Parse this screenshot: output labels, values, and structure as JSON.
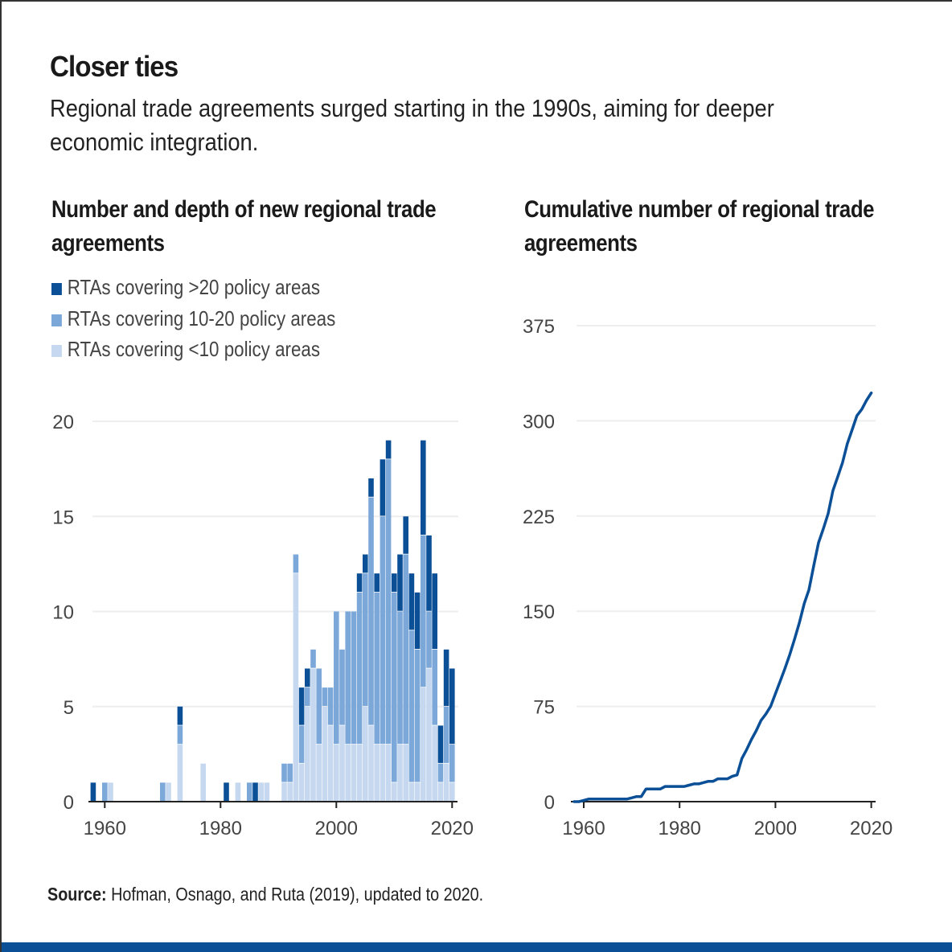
{
  "title": "Closer ties",
  "subtitle": "Regional trade agreements surged starting in the 1990s, aiming for deeper economic integration.",
  "source_label": "Source:",
  "source_text": " Hofman, Osnago, and Ruta (2019), updated to 2020.",
  "colors": {
    "deep": "#0b4f96",
    "medium": "#7ba7d9",
    "shallow": "#c5d8ef",
    "line": "#0b4f96",
    "grid": "#eeeeee"
  },
  "chart_data": [
    {
      "type": "bar",
      "stacked": true,
      "title": "Number and depth of new regional trade agreements",
      "xlabel": "",
      "ylabel": "",
      "ylim": [
        0,
        20
      ],
      "yticks": [
        0,
        5,
        10,
        15,
        20
      ],
      "xticks": [
        1960,
        1980,
        2000,
        2020
      ],
      "grid": true,
      "legend_placement": "top-left",
      "categories": [
        1958,
        1960,
        1961,
        1970,
        1971,
        1973,
        1977,
        1981,
        1983,
        1985,
        1986,
        1987,
        1988,
        1991,
        1992,
        1993,
        1994,
        1995,
        1996,
        1997,
        1998,
        1999,
        2000,
        2001,
        2002,
        2003,
        2004,
        2005,
        2006,
        2007,
        2008,
        2009,
        2010,
        2011,
        2012,
        2013,
        2014,
        2015,
        2016,
        2017,
        2018,
        2019,
        2020
      ],
      "series": [
        {
          "name": "RTAs covering <10 policy areas",
          "color": "#c5d8ef",
          "values": [
            0,
            0,
            1,
            0,
            1,
            3,
            2,
            0,
            1,
            0,
            0,
            1,
            1,
            1,
            1,
            12,
            2,
            5,
            7,
            3,
            5,
            4,
            3,
            4,
            3,
            3,
            3,
            5,
            4,
            3,
            3,
            3,
            1,
            3,
            3,
            1,
            1,
            6,
            7,
            4,
            1,
            2,
            1
          ]
        },
        {
          "name": "RTAs covering 10-20 policy areas",
          "color": "#7ba7d9",
          "values": [
            0,
            1,
            0,
            1,
            0,
            1,
            0,
            0,
            0,
            1,
            0,
            0,
            0,
            1,
            1,
            1,
            2,
            1,
            1,
            4,
            1,
            2,
            7,
            4,
            7,
            7,
            8,
            7,
            12,
            8,
            12,
            15,
            10,
            7,
            10,
            8,
            7,
            8,
            3,
            4,
            1,
            3,
            2
          ]
        },
        {
          "name": "RTAs covering >20 policy areas",
          "color": "#0b4f96",
          "values": [
            1,
            0,
            0,
            0,
            0,
            1,
            0,
            1,
            0,
            0,
            1,
            0,
            0,
            0,
            0,
            0,
            2,
            1,
            0,
            0,
            0,
            0,
            0,
            0,
            0,
            0,
            1,
            1,
            1,
            1,
            3,
            1,
            1,
            3,
            2,
            3,
            3,
            5,
            4,
            4,
            2,
            3,
            4
          ]
        }
      ]
    },
    {
      "type": "line",
      "title": "Cumulative number of regional trade agreements",
      "xlabel": "",
      "ylabel": "",
      "ylim": [
        0,
        375
      ],
      "yticks": [
        0,
        75,
        150,
        225,
        300,
        375
      ],
      "xticks": [
        1960,
        1980,
        2000,
        2020
      ],
      "grid": true,
      "x": [
        1958,
        1959,
        1960,
        1961,
        1969,
        1970,
        1971,
        1972,
        1973,
        1976,
        1977,
        1980,
        1981,
        1982,
        1983,
        1984,
        1985,
        1986,
        1987,
        1988,
        1990,
        1991,
        1992,
        1993,
        1994,
        1995,
        1996,
        1997,
        1998,
        1999,
        2000,
        2001,
        2002,
        2003,
        2004,
        2005,
        2006,
        2007,
        2008,
        2009,
        2010,
        2011,
        2012,
        2013,
        2014,
        2015,
        2016,
        2017,
        2018,
        2019,
        2020
      ],
      "y": [
        0,
        0,
        1,
        2,
        2,
        3,
        4,
        4,
        10,
        10,
        12,
        12,
        12,
        13,
        14,
        14,
        15,
        16,
        16,
        18,
        18,
        20,
        21,
        34,
        41,
        49,
        56,
        64,
        69,
        75,
        85,
        95,
        105,
        116,
        128,
        141,
        156,
        167,
        186,
        204,
        215,
        227,
        245,
        256,
        267,
        282,
        293,
        304,
        309,
        316,
        322
      ]
    }
  ]
}
